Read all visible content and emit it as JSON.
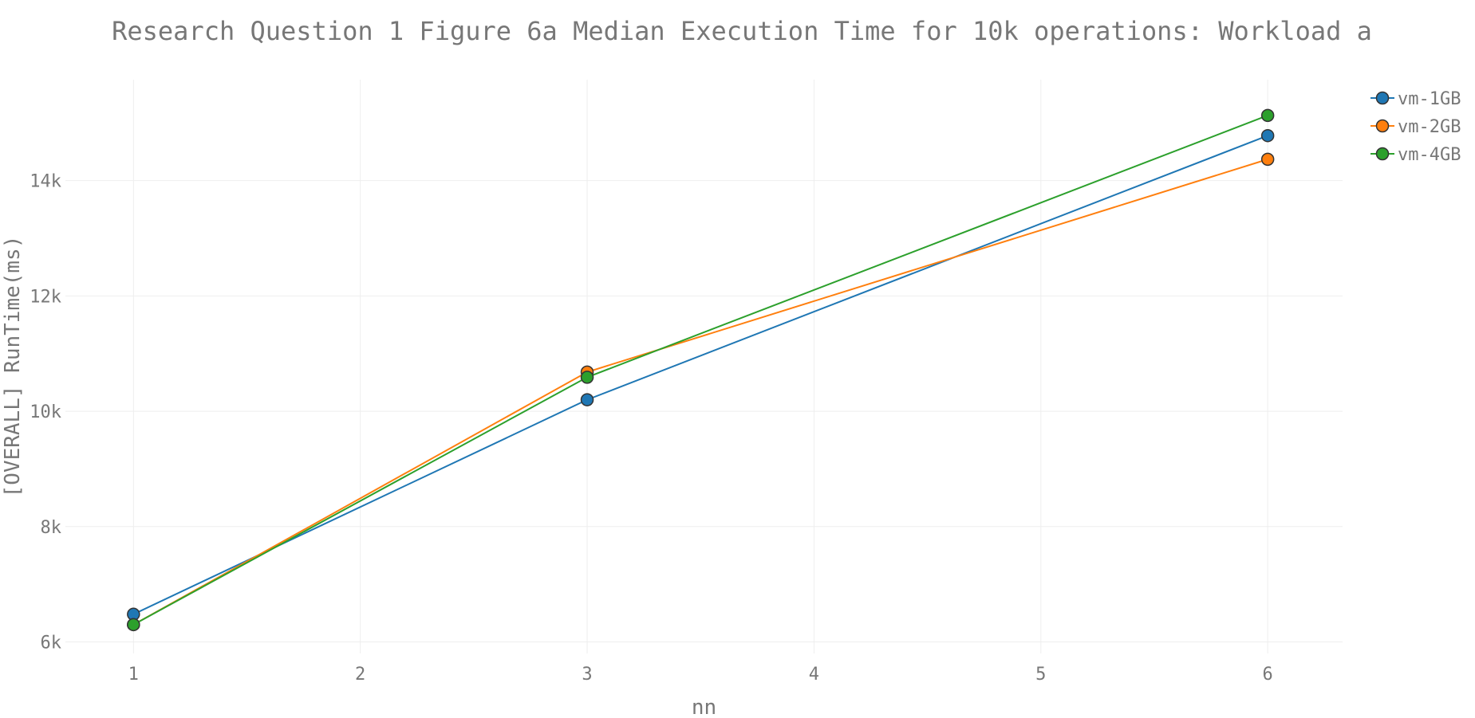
{
  "chart_data": {
    "type": "line",
    "title": "Research Question 1 Figure 6a Median Execution Time for 10k operations: Workload a",
    "xlabel": "nn",
    "ylabel": "[OVERALL] RunTime(ms)",
    "x": [
      1,
      3,
      6
    ],
    "xlim": [
      0.7,
      6.33
    ],
    "ylim": [
      5800,
      15750
    ],
    "xticks": [
      1,
      2,
      3,
      4,
      5,
      6
    ],
    "yticks": [
      6000,
      8000,
      10000,
      12000,
      14000
    ],
    "ytick_labels": [
      "6k",
      "8k",
      "10k",
      "12k",
      "14k"
    ],
    "grid": true,
    "legend_position": "top-right",
    "series": [
      {
        "name": "vm-1GB",
        "color": "#1f77b4",
        "values": [
          6480,
          10200,
          14780
        ]
      },
      {
        "name": "vm-2GB",
        "color": "#ff7f0e",
        "values": [
          6300,
          10680,
          14370
        ]
      },
      {
        "name": "vm-4GB",
        "color": "#2ca02c",
        "values": [
          6300,
          10590,
          15130
        ]
      }
    ]
  }
}
